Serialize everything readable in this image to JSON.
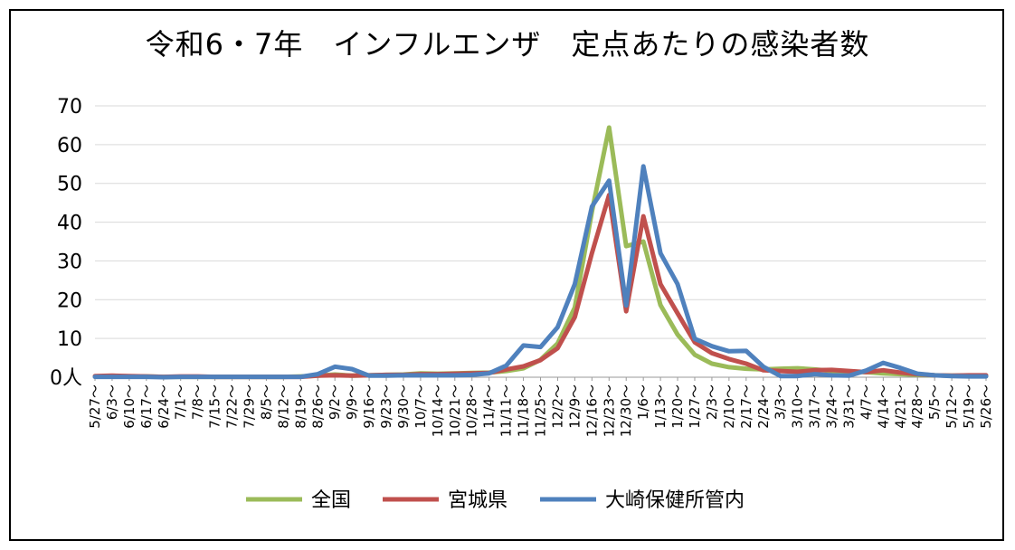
{
  "chart_data": {
    "type": "line",
    "title": "令和6・7年　インフルエンザ　定点あたりの感染者数",
    "xlabel": "",
    "ylabel": "",
    "ylim": [
      0,
      70
    ],
    "yticks": [
      "0人",
      "10",
      "20",
      "30",
      "40",
      "50",
      "60",
      "70"
    ],
    "grid": true,
    "legend_position": "bottom",
    "categories": [
      "5/27～",
      "6/3～",
      "6/10～",
      "6/17～",
      "6/24～",
      "7/1～",
      "7/8～",
      "7/15～",
      "7/22～",
      "7/29～",
      "8/5～",
      "8/12～",
      "8/19～",
      "8/26～",
      "9/2～",
      "9/9～",
      "9/16～",
      "9/23～",
      "9/30～",
      "10/7～",
      "10/14～",
      "10/21～",
      "10/28～",
      "11/4～",
      "11/11～",
      "11/18～",
      "11/25～",
      "12/2～",
      "12/9～",
      "12/16～",
      "12/23～",
      "12/30～",
      "1/6～",
      "1/13～",
      "1/20～",
      "1/27～",
      "2/3～",
      "2/10～",
      "2/17～",
      "2/24～",
      "3/3～",
      "3/10～",
      "3/17～",
      "3/24～",
      "3/31～",
      "4/7～",
      "4/14～",
      "4/21～",
      "4/28～",
      "5/5～",
      "5/12～",
      "5/19～",
      "5/26～"
    ],
    "series": [
      {
        "name": "全国",
        "color": "#9BBB59",
        "values": [
          0.2,
          0.2,
          0.2,
          0.2,
          0.1,
          0.1,
          0.1,
          0.1,
          0.1,
          0.1,
          0.1,
          0.1,
          0.2,
          0.4,
          0.7,
          0.4,
          0.5,
          0.6,
          0.7,
          1.0,
          0.9,
          1.0,
          1.1,
          1.2,
          1.6,
          2.3,
          4.5,
          8.7,
          18.0,
          42.7,
          64.4,
          33.8,
          35.0,
          18.6,
          11.0,
          5.8,
          3.5,
          2.6,
          2.2,
          2.0,
          2.2,
          2.3,
          2.0,
          1.6,
          1.5,
          1.3,
          1.0,
          0.8,
          0.6,
          0.5,
          0.4,
          0.4,
          0.3
        ]
      },
      {
        "name": "宮城県",
        "color": "#C0504D",
        "values": [
          0.3,
          0.4,
          0.3,
          0.2,
          0.1,
          0.2,
          0.2,
          0.1,
          0.1,
          0.1,
          0.1,
          0.1,
          0.1,
          0.4,
          0.5,
          0.4,
          0.5,
          0.6,
          0.6,
          0.8,
          0.8,
          0.9,
          1.0,
          1.1,
          2.0,
          2.8,
          4.4,
          7.5,
          15.5,
          32.0,
          47.0,
          17.0,
          41.5,
          24.0,
          16.5,
          9.0,
          6.2,
          4.7,
          3.5,
          1.8,
          1.6,
          1.4,
          1.8,
          1.9,
          1.6,
          1.3,
          1.8,
          1.2,
          0.8,
          0.5,
          0.4,
          0.5,
          0.5
        ]
      },
      {
        "name": "大崎保健所管内",
        "color": "#4F81BD",
        "values": [
          0.1,
          0.1,
          0.1,
          0.1,
          0.0,
          0.1,
          0.1,
          0.1,
          0.1,
          0.1,
          0.1,
          0.1,
          0.1,
          0.8,
          2.7,
          2.1,
          0.4,
          0.4,
          0.5,
          0.5,
          0.5,
          0.5,
          0.6,
          1.0,
          3.0,
          8.2,
          7.8,
          12.9,
          24.0,
          44.0,
          50.7,
          18.5,
          54.4,
          32.0,
          24.0,
          9.9,
          8.0,
          6.7,
          6.8,
          2.7,
          0.3,
          0.3,
          0.8,
          0.5,
          0.4,
          1.7,
          3.7,
          2.4,
          0.9,
          0.5,
          0.3,
          0.2,
          0.2
        ]
      }
    ]
  }
}
